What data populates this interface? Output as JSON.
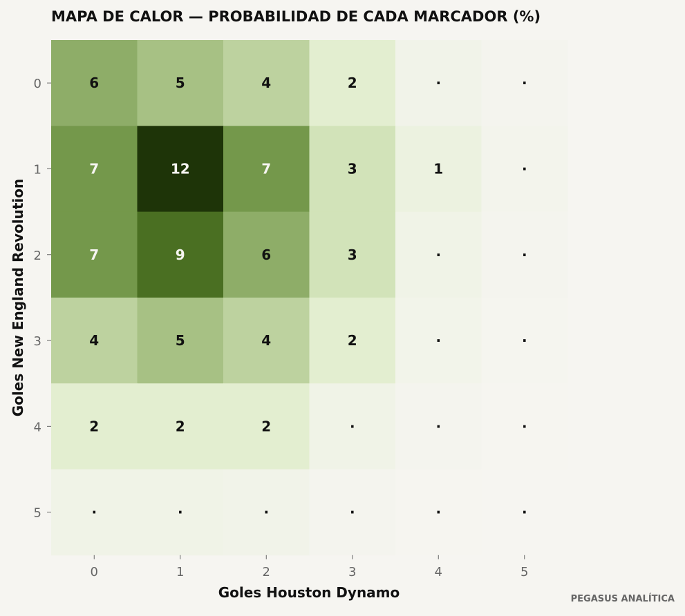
{
  "chart_data": {
    "type": "heatmap",
    "title": "MAPA DE CALOR — PROBABILIDAD DE CADA MARCADOR (%)",
    "xlabel": "Goles Houston Dynamo",
    "ylabel": "Goles New England Revolution",
    "x_categories": [
      "0",
      "1",
      "2",
      "3",
      "4",
      "5"
    ],
    "y_categories": [
      "0",
      "1",
      "2",
      "3",
      "4",
      "5"
    ],
    "values": [
      [
        6,
        5,
        4,
        2,
        0.5,
        0.2
      ],
      [
        7,
        12,
        7,
        3,
        1,
        0.3
      ],
      [
        7,
        9,
        6,
        3,
        0.6,
        0.2
      ],
      [
        4,
        5,
        4,
        2,
        0.4,
        0.1
      ],
      [
        2,
        2,
        2,
        0.6,
        0.2,
        0.05
      ],
      [
        0.6,
        0.6,
        0.5,
        0.2,
        0.05,
        0.02
      ]
    ],
    "labels": [
      [
        "6",
        "5",
        "4",
        "2",
        "·",
        "·"
      ],
      [
        "7",
        "12",
        "7",
        "3",
        "1",
        "·"
      ],
      [
        "7",
        "9",
        "6",
        "3",
        "·",
        "·"
      ],
      [
        "4",
        "5",
        "4",
        "2",
        "·",
        "·"
      ],
      [
        "2",
        "2",
        "2",
        "·",
        "·",
        "·"
      ],
      [
        "·",
        "·",
        "·",
        "·",
        "·",
        "·"
      ]
    ],
    "colors": {
      "scale": [
        "#f6f5f1",
        "#dfedc9",
        "#acc58a",
        "#6f9445",
        "#3e6216",
        "#1e3408"
      ],
      "text_dark": "#111111",
      "text_light": "#f6f5f1"
    }
  },
  "watermark": "PEGASUS ANALÍTICA"
}
